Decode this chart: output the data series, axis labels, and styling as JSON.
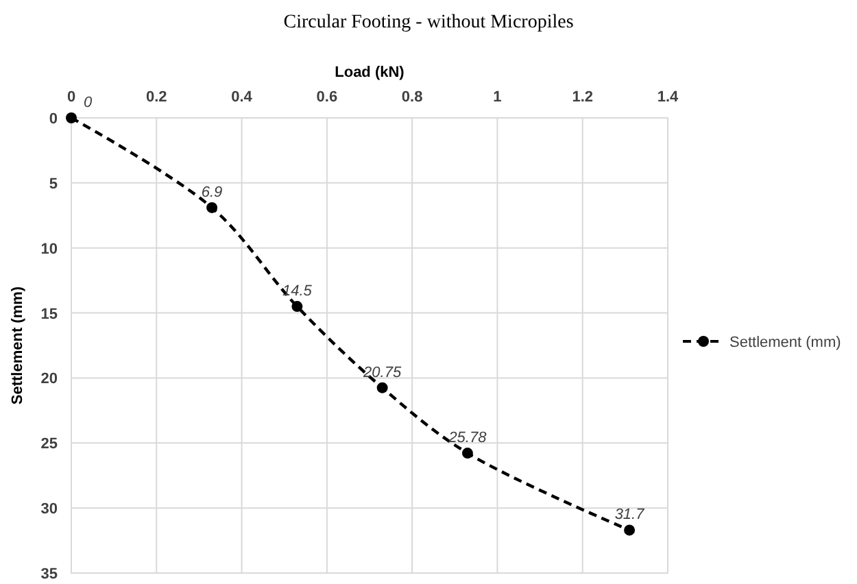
{
  "chart_data": {
    "type": "line",
    "title": "Circular Footing - without Micropiles",
    "xlabel": "Load (kN)",
    "ylabel": "Settlement (mm)",
    "x": [
      0,
      0.33,
      0.53,
      0.73,
      0.93,
      1.31
    ],
    "series": [
      {
        "name": "Settlement (mm)",
        "color": "#000000",
        "values": [
          0,
          6.9,
          14.5,
          20.75,
          25.78,
          31.7
        ]
      }
    ],
    "xlim": [
      0,
      1.4
    ],
    "xticks": [
      0,
      0.2,
      0.4,
      0.6,
      0.8,
      1,
      1.2,
      1.4
    ],
    "ylim": [
      35,
      0
    ],
    "yticks": [
      0,
      5,
      10,
      15,
      20,
      25,
      30,
      35
    ],
    "grid": true,
    "legend": "right",
    "marker": "circle",
    "line_style": "dashed",
    "data_labels": true
  }
}
